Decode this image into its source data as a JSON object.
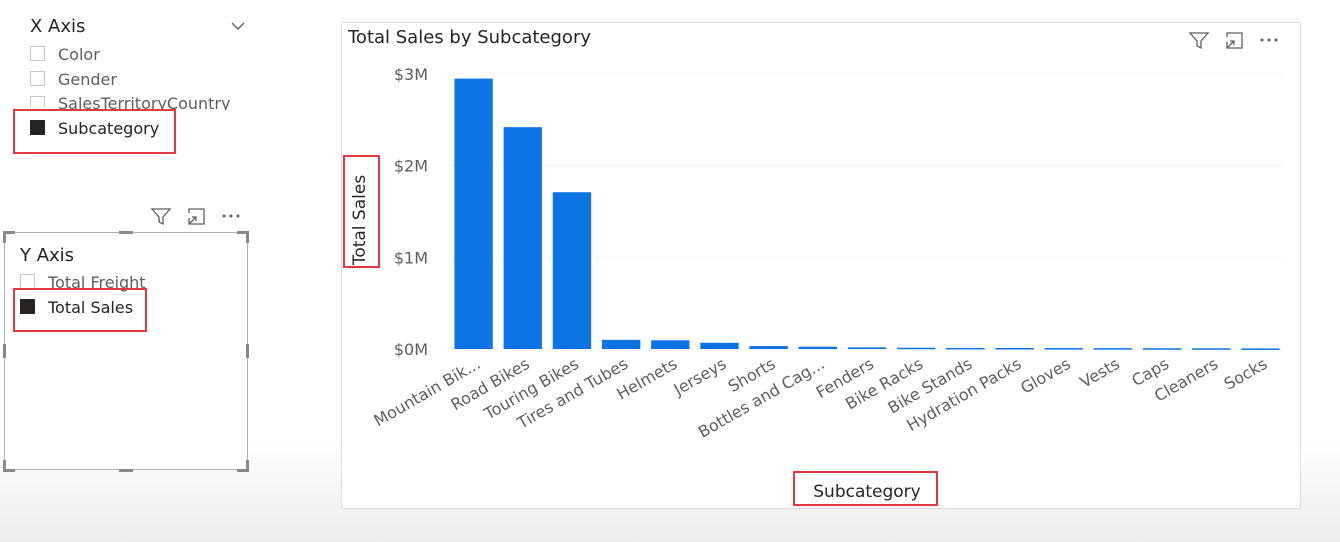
{
  "x_axis_slicer": {
    "title": "X Axis",
    "items": [
      {
        "label": "Color",
        "checked": false
      },
      {
        "label": "Gender",
        "checked": false
      },
      {
        "label": "SalesTerritoryCountry",
        "checked": false
      },
      {
        "label": "Subcategory",
        "checked": true
      }
    ]
  },
  "y_axis_slicer": {
    "title": "Y Axis",
    "items": [
      {
        "label": "Total Freight",
        "checked": false
      },
      {
        "label": "Total Sales",
        "checked": true
      }
    ]
  },
  "icons": [
    "filter-icon",
    "focus-mode-icon",
    "more-options-icon",
    "chevron-down-icon"
  ],
  "colors": {
    "bar": "#0c74e4",
    "highlight": "#e0393e"
  },
  "chart_data": {
    "type": "bar",
    "title": "Total Sales by Subcategory",
    "xlabel": "Subcategory",
    "ylabel": "Total Sales",
    "categories": [
      "Mountain Bik...",
      "Road Bikes",
      "Touring Bikes",
      "Tires and Tubes",
      "Helmets",
      "Jerseys",
      "Shorts",
      "Bottles and Cag...",
      "Fenders",
      "Bike Racks",
      "Bike Stands",
      "Hydration Packs",
      "Gloves",
      "Vests",
      "Caps",
      "Cleaners",
      "Socks"
    ],
    "values": [
      2950000,
      2420000,
      1710000,
      100000,
      95000,
      68000,
      32000,
      25000,
      18000,
      14000,
      12000,
      11000,
      10000,
      9000,
      8500,
      7500,
      6000
    ],
    "yticks": [
      "$0M",
      "$1M",
      "$2M",
      "$3M"
    ],
    "ylim": [
      0,
      3000000
    ],
    "grid": true
  }
}
